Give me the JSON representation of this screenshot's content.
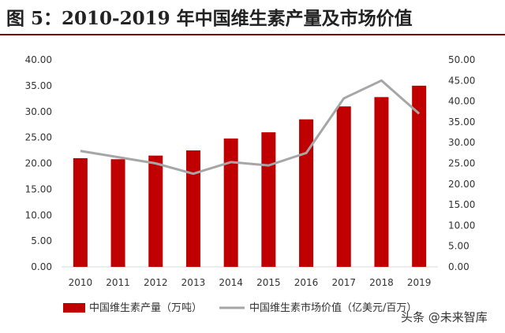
{
  "header": {
    "title": "图 5：2010-2019 年中国维生素产量及市场价值"
  },
  "watermark": "头条 @未来智库",
  "colors": {
    "bar": "#c00000",
    "line": "#a6a6a6",
    "title_rule": "#7a0c0c"
  },
  "chart_data": {
    "type": "bar",
    "title": "",
    "categories": [
      "2010",
      "2011",
      "2012",
      "2013",
      "2014",
      "2015",
      "2016",
      "2017",
      "2018",
      "2019"
    ],
    "series": [
      {
        "name": "中国维生素产量（万吨）",
        "type": "bar",
        "axis": "left",
        "values": [
          21.0,
          20.8,
          21.5,
          22.5,
          24.8,
          26.0,
          28.5,
          31.0,
          32.8,
          35.0
        ]
      },
      {
        "name": "中国维生素市场价值（亿美元/百万）",
        "type": "line",
        "axis": "right",
        "values": [
          28.0,
          26.5,
          25.0,
          22.5,
          25.3,
          24.5,
          27.5,
          40.7,
          45.0,
          37.0
        ]
      }
    ],
    "y_left": {
      "ylim": [
        0,
        40
      ],
      "ticks": [
        "0.00",
        "5.00",
        "10.00",
        "15.00",
        "20.00",
        "25.00",
        "30.00",
        "35.00",
        "40.00"
      ]
    },
    "y_right": {
      "ylim": [
        0,
        50
      ],
      "ticks": [
        "0.00",
        "5.00",
        "10.00",
        "15.00",
        "20.00",
        "25.00",
        "30.00",
        "35.00",
        "40.00",
        "45.00",
        "50.00"
      ]
    },
    "grid": false,
    "legend": "bottom"
  }
}
